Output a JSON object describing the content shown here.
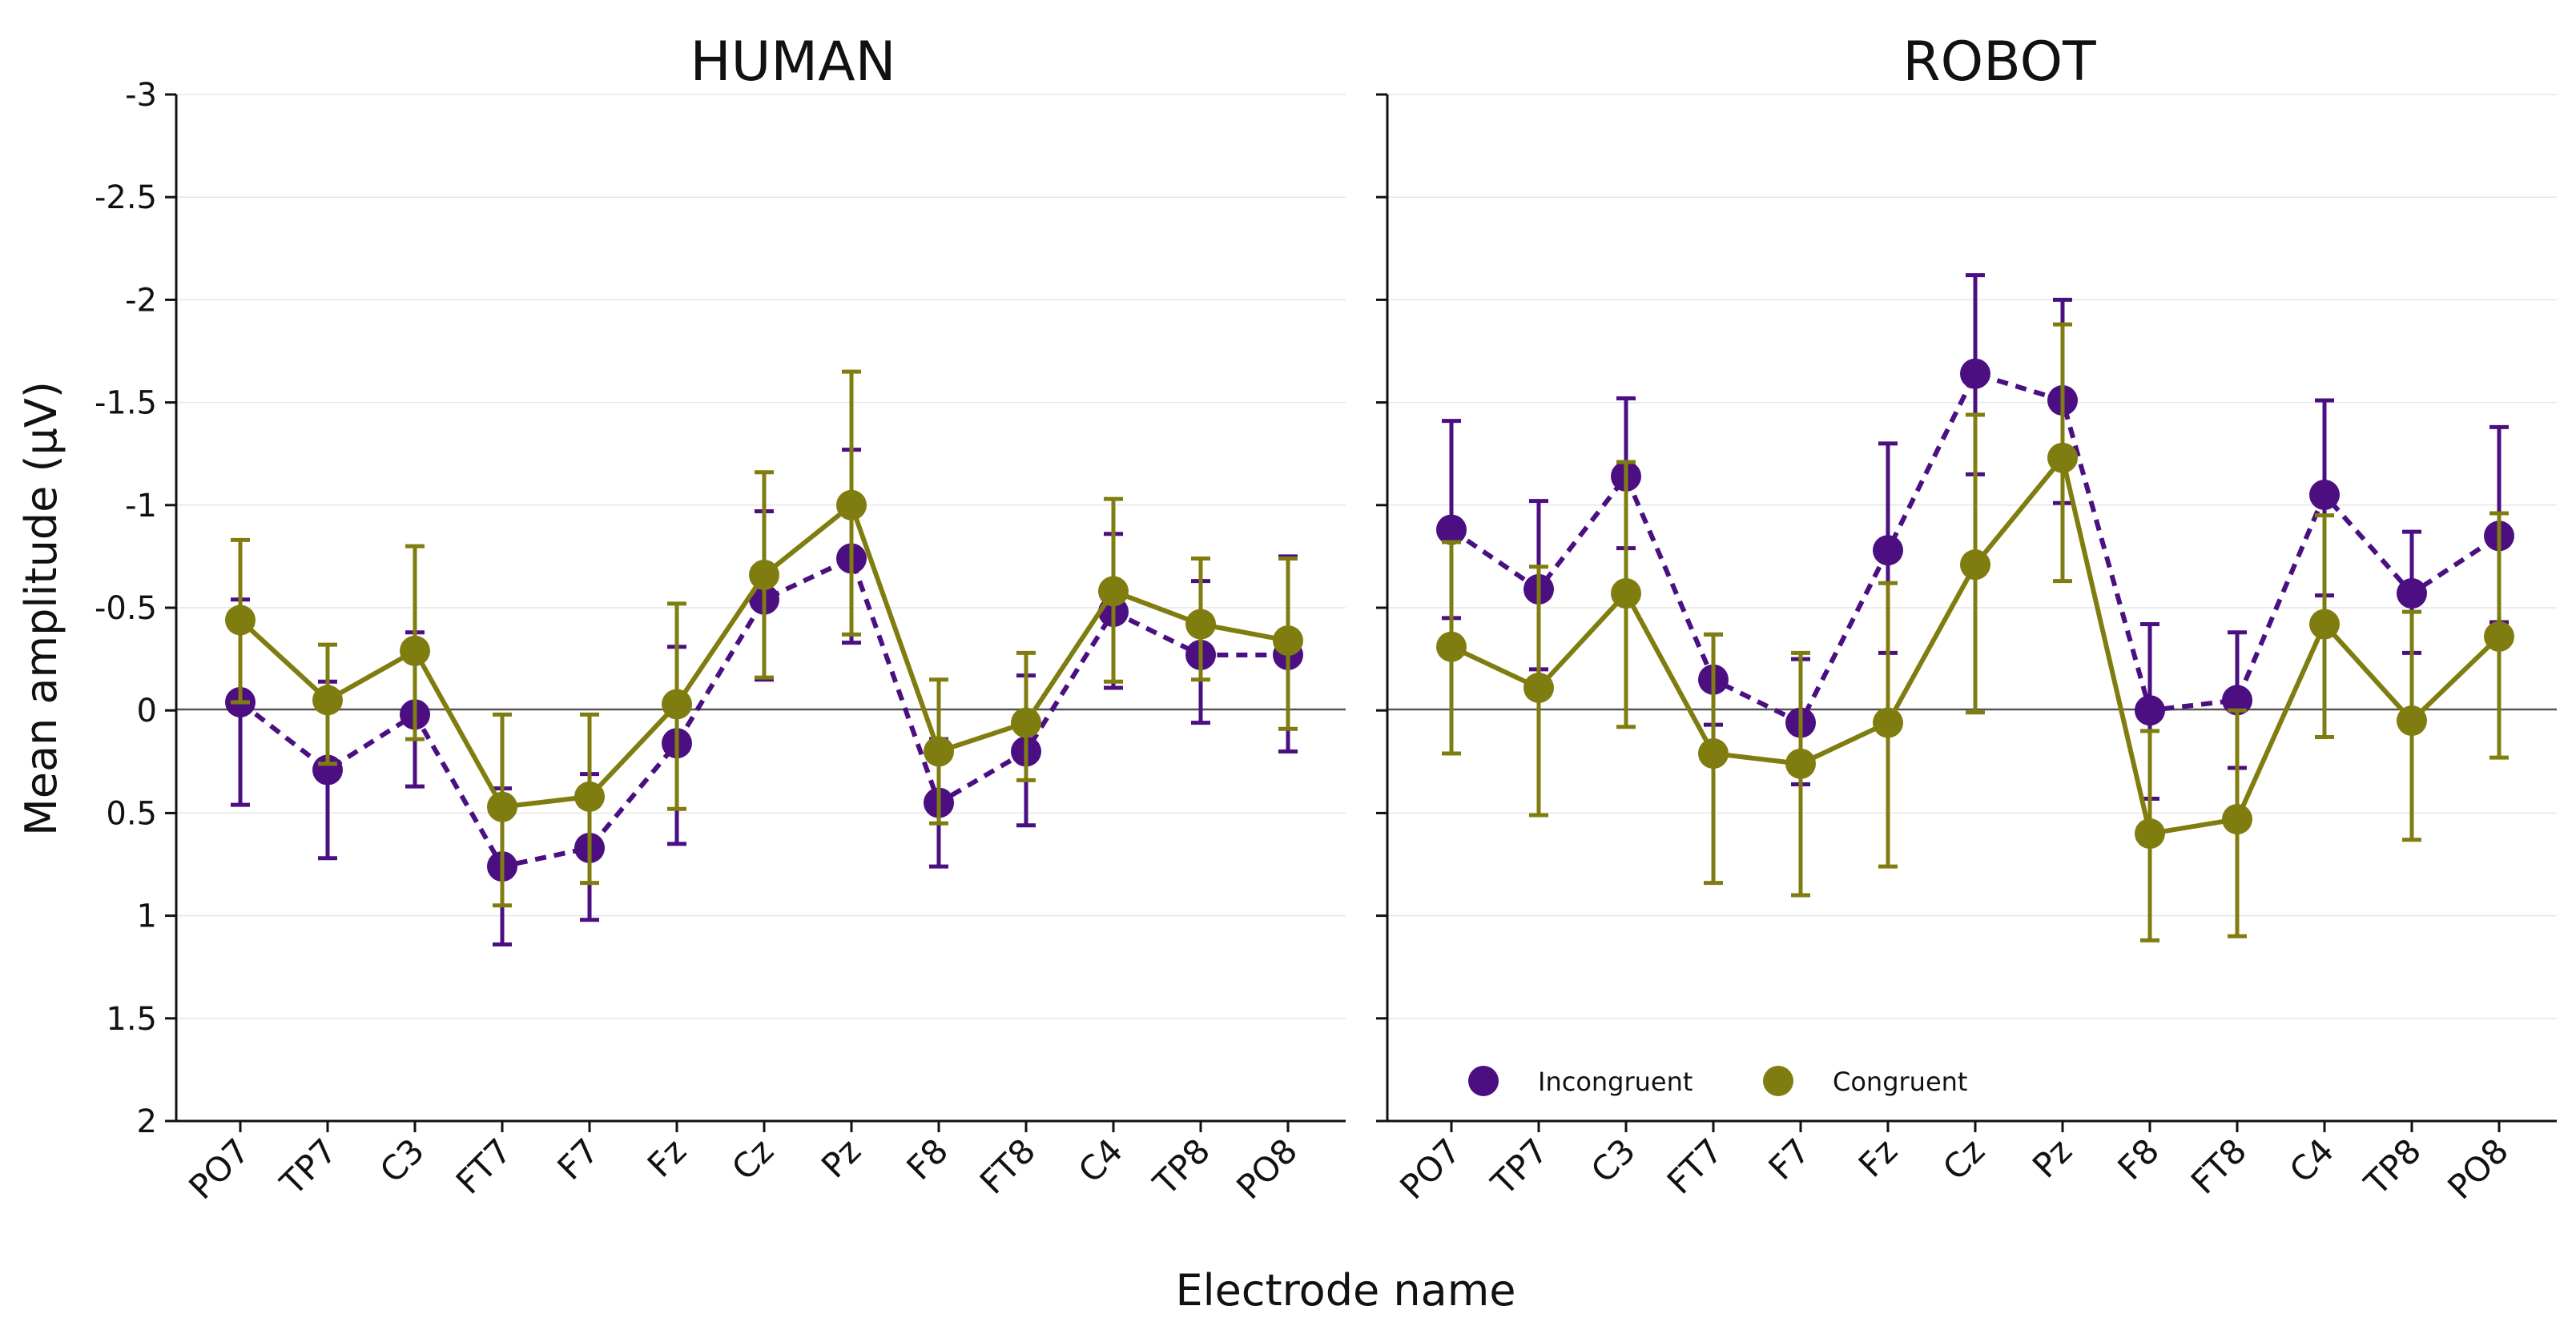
{
  "chart_data": {
    "type": "line",
    "categories": [
      "PO7",
      "TP7",
      "C3",
      "FT7",
      "F7",
      "Fz",
      "Cz",
      "Pz",
      "F8",
      "FT8",
      "C4",
      "TP8",
      "PO8"
    ],
    "ylabel": "Mean amplitude (μV)",
    "xlabel": "Electrode name",
    "ylim": [
      2,
      -3
    ],
    "yticks": [
      -3,
      -2.5,
      -2,
      -1.5,
      -1,
      -0.5,
      0,
      0.5,
      1,
      1.5,
      2
    ],
    "ytick_labels": [
      "-3",
      "-2.5",
      "-2",
      "-1.5",
      "-1",
      "-0.5",
      "0",
      "0.5",
      "1",
      "1.5",
      "2"
    ],
    "legend_location": "lower-left of right panel",
    "colors": {
      "incongruent": "#4b0f82",
      "congruent": "#807d10"
    },
    "panels": [
      {
        "title": "HUMAN",
        "series": [
          {
            "name": "Incongruent",
            "style": "dashed",
            "values": [
              -0.04,
              0.29,
              0.02,
              0.76,
              0.67,
              0.16,
              -0.54,
              -0.74,
              0.45,
              0.2,
              -0.48,
              -0.27,
              -0.27
            ],
            "err_low": [
              0.46,
              0.72,
              0.37,
              1.14,
              1.02,
              0.65,
              -0.15,
              -0.33,
              0.76,
              0.56,
              -0.11,
              0.06,
              0.2
            ],
            "err_high": [
              -0.54,
              -0.14,
              -0.38,
              0.38,
              0.31,
              -0.31,
              -0.97,
              -1.27,
              0.14,
              -0.17,
              -0.86,
              -0.63,
              -0.75
            ]
          },
          {
            "name": "Congruent",
            "style": "solid",
            "values": [
              -0.44,
              -0.05,
              -0.29,
              0.47,
              0.42,
              -0.03,
              -0.66,
              -1.0,
              0.2,
              0.06,
              -0.58,
              -0.42,
              -0.34
            ],
            "err_low": [
              -0.04,
              0.26,
              0.14,
              0.95,
              0.84,
              0.48,
              -0.16,
              -0.37,
              0.55,
              0.34,
              -0.14,
              -0.15,
              0.09
            ],
            "err_high": [
              -0.83,
              -0.32,
              -0.8,
              0.02,
              0.02,
              -0.52,
              -1.16,
              -1.65,
              -0.15,
              -0.28,
              -1.03,
              -0.74,
              -0.74
            ]
          }
        ]
      },
      {
        "title": "ROBOT",
        "series": [
          {
            "name": "Incongruent",
            "style": "dashed",
            "values": [
              -0.88,
              -0.59,
              -1.14,
              -0.15,
              0.06,
              -0.78,
              -1.64,
              -1.51,
              0.0,
              -0.05,
              -1.05,
              -0.57,
              -0.85
            ],
            "err_low": [
              -0.45,
              -0.2,
              -0.79,
              0.07,
              0.36,
              -0.28,
              -1.15,
              -1.01,
              0.43,
              0.28,
              -0.56,
              -0.28,
              -0.43
            ],
            "err_high": [
              -1.41,
              -1.02,
              -1.52,
              -0.37,
              -0.25,
              -1.3,
              -2.12,
              -2.0,
              -0.42,
              -0.38,
              -1.51,
              -0.87,
              -1.38
            ]
          },
          {
            "name": "Congruent",
            "style": "solid",
            "values": [
              -0.31,
              -0.11,
              -0.57,
              0.21,
              0.26,
              0.06,
              -0.71,
              -1.23,
              0.6,
              0.53,
              -0.42,
              0.05,
              -0.36
            ],
            "err_low": [
              0.21,
              0.51,
              0.08,
              0.84,
              0.9,
              0.76,
              0.01,
              -0.63,
              1.12,
              1.1,
              0.13,
              0.63,
              0.23
            ],
            "err_high": [
              -0.82,
              -0.7,
              -1.21,
              -0.37,
              -0.28,
              -0.62,
              -1.44,
              -1.88,
              0.1,
              0.0,
              -0.95,
              -0.48,
              -0.96
            ]
          }
        ]
      }
    ]
  }
}
